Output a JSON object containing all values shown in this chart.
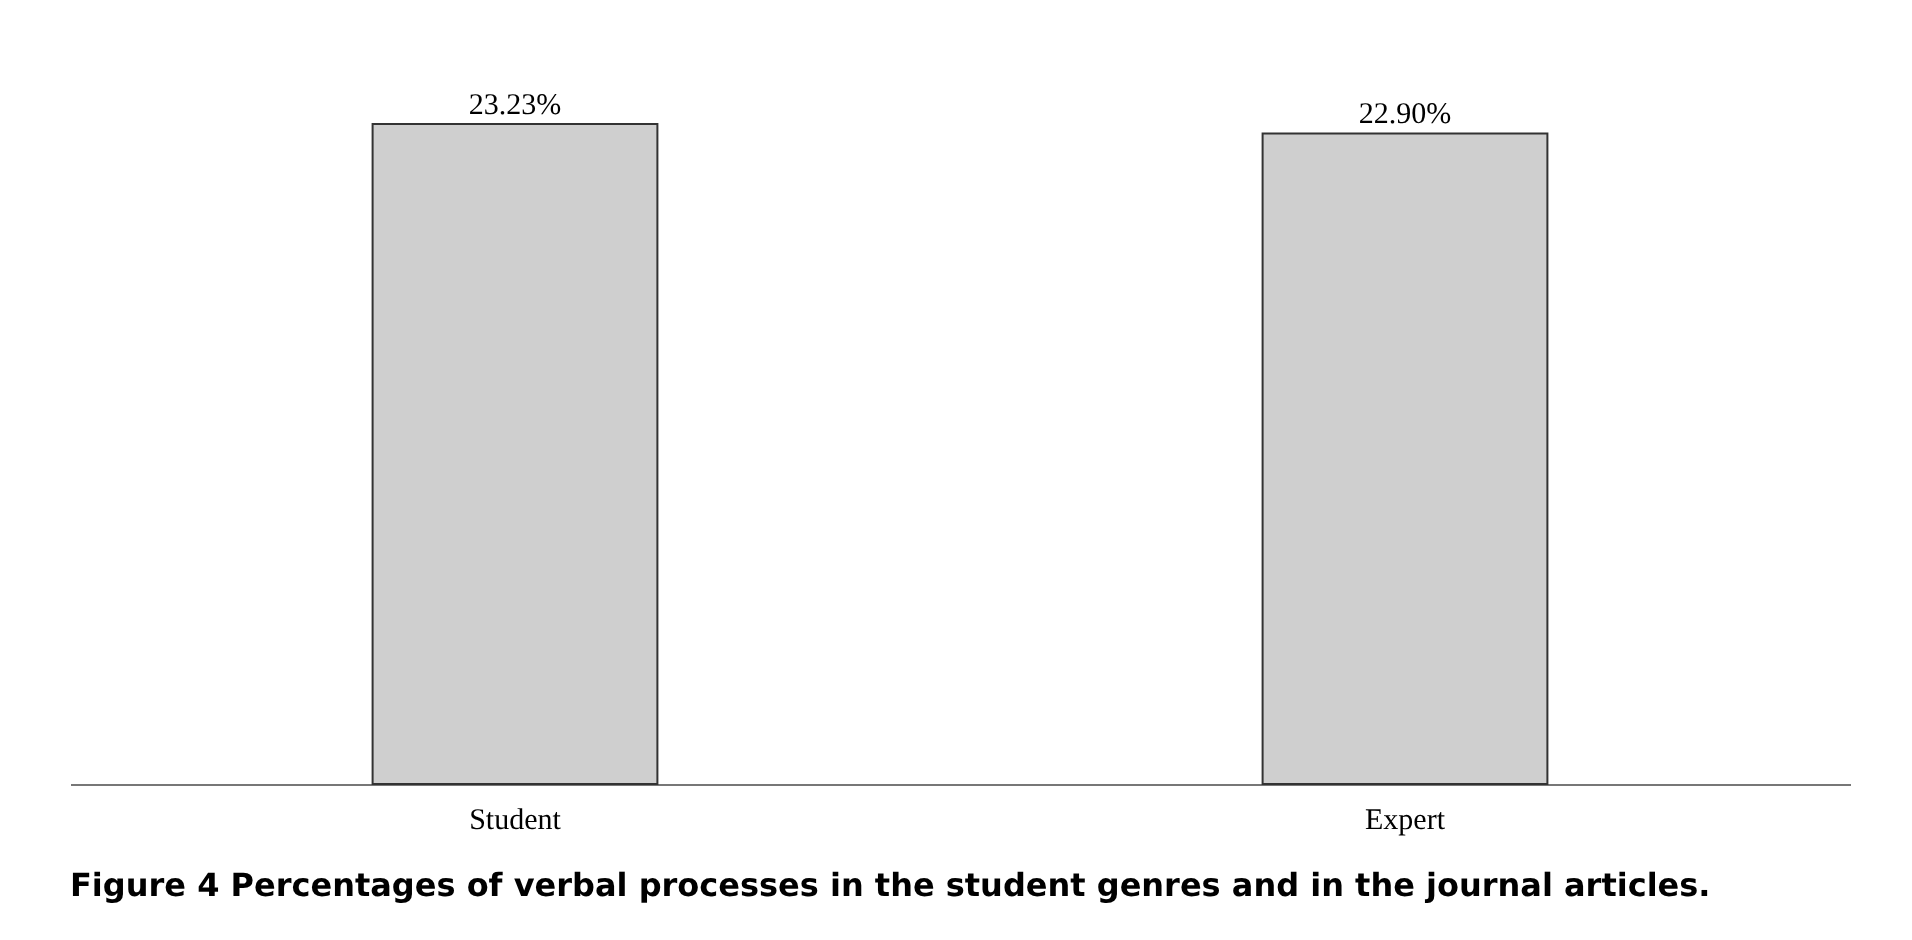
{
  "chart_data": {
    "type": "bar",
    "categories": [
      "Student",
      "Expert"
    ],
    "values": [
      23.23,
      22.9
    ],
    "value_labels": [
      "23.23%",
      "22.90%"
    ],
    "color": "#cfcfcf",
    "annotations": [
      "Figure 4 Percentages of verbal processes in the student genres and in the journal articles."
    ],
    "grid": false
  }
}
